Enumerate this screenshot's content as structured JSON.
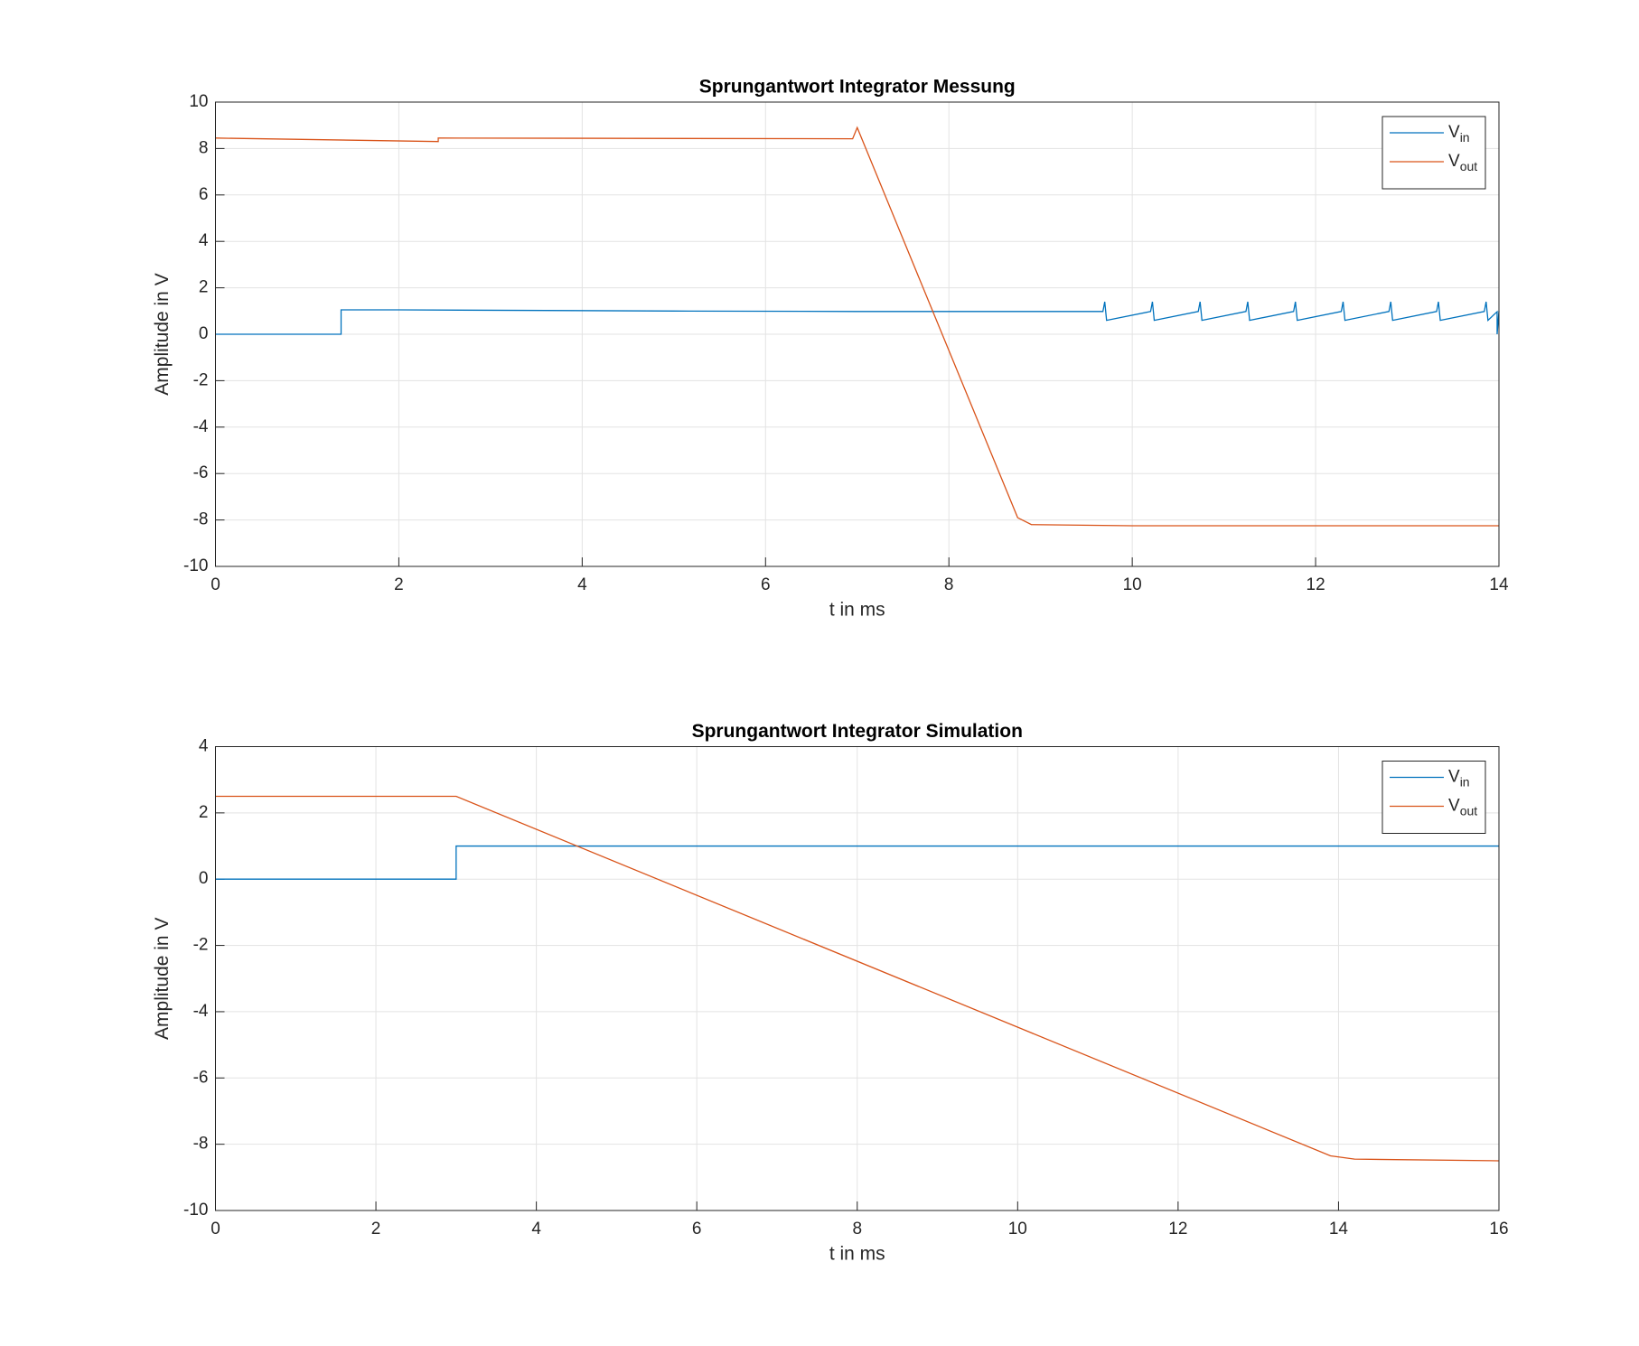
{
  "chart_data": [
    {
      "type": "line",
      "title": "Sprungantwort Integrator Messung",
      "x_label": "t in ms",
      "y_label": "Amplitude in V",
      "xlim": [
        0,
        14
      ],
      "xticks": [
        0,
        2,
        4,
        6,
        8,
        10,
        12,
        14
      ],
      "ylim": [
        -10,
        10
      ],
      "yticks": [
        -10,
        -8,
        -6,
        -4,
        -2,
        0,
        2,
        4,
        6,
        8,
        10
      ],
      "grid": true,
      "legend": "northeast",
      "series": [
        {
          "name": "V_in",
          "color": "#0072BD",
          "x": [
            0,
            1.37,
            1.37,
            2,
            5,
            7,
            9.68,
            9.7,
            9.72,
            10.2,
            10.22,
            10.24,
            10.72,
            10.74,
            10.76,
            11.24,
            11.26,
            11.28,
            11.76,
            11.78,
            11.8,
            12.28,
            12.3,
            12.32,
            12.8,
            12.82,
            12.84,
            13.32,
            13.34,
            13.36,
            13.84,
            13.86,
            13.88,
            13.98,
            13.98,
            14
          ],
          "values": [
            0,
            0,
            1.05,
            1.05,
            1.0,
            0.98,
            0.98,
            1.4,
            0.6,
            0.98,
            1.4,
            0.6,
            0.98,
            1.4,
            0.6,
            0.98,
            1.4,
            0.6,
            0.98,
            1.4,
            0.6,
            0.98,
            1.4,
            0.6,
            0.98,
            1.4,
            0.6,
            0.98,
            1.4,
            0.6,
            0.98,
            1.4,
            0.6,
            0.97,
            0,
            1.0
          ]
        },
        {
          "name": "V_out",
          "color": "#D95319",
          "x": [
            0,
            2.43,
            2.43,
            6.95,
            7.0,
            8.75,
            8.9,
            10,
            14
          ],
          "values": [
            8.45,
            8.3,
            8.45,
            8.42,
            8.9,
            -7.9,
            -8.2,
            -8.25,
            -8.25
          ]
        }
      ]
    },
    {
      "type": "line",
      "title": "Sprungantwort Integrator Simulation",
      "x_label": "t in ms",
      "y_label": "Amplitude in V",
      "xlim": [
        0,
        16
      ],
      "xticks": [
        0,
        2,
        4,
        6,
        8,
        10,
        12,
        14,
        16
      ],
      "ylim": [
        -10,
        4
      ],
      "yticks": [
        -10,
        -8,
        -6,
        -4,
        -2,
        0,
        2,
        4
      ],
      "grid": true,
      "legend": "northeast",
      "series": [
        {
          "name": "V_in",
          "color": "#0072BD",
          "x": [
            0,
            3,
            3,
            16
          ],
          "values": [
            0,
            0,
            1,
            1
          ]
        },
        {
          "name": "V_out",
          "color": "#D95319",
          "x": [
            0,
            3,
            13.9,
            14.2,
            16
          ],
          "values": [
            2.5,
            2.5,
            -8.35,
            -8.45,
            -8.5
          ]
        }
      ]
    }
  ]
}
